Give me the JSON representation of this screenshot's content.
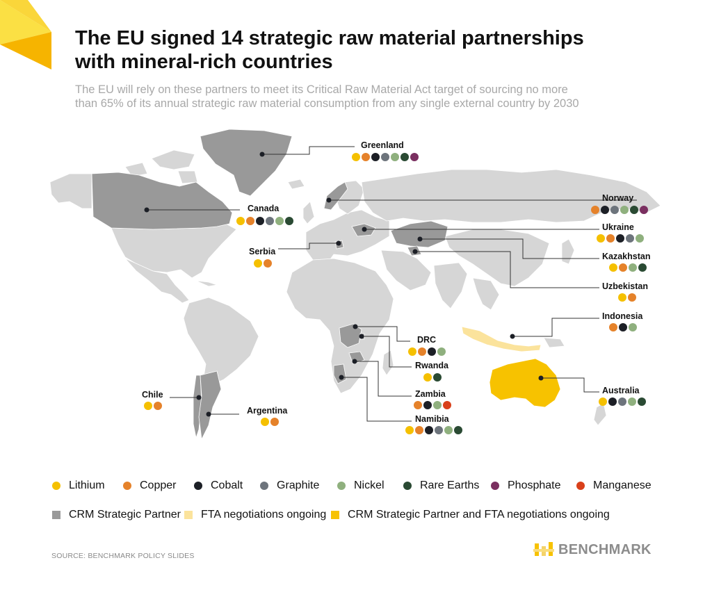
{
  "title_lines": [
    "The EU signed 14 strategic raw material partnerships",
    "with mineral-rich countries"
  ],
  "subtitle_lines": [
    "The EU will rely on these partners to meet its Critical Raw Material Act target of sourcing no more",
    "than 65% of its annual strategic raw material consumption from any single external country by 2030"
  ],
  "colors": {
    "lithium": "#f5c000",
    "copper": "#e5822a",
    "cobalt": "#1c1f26",
    "graphite": "#6d747c",
    "nickel": "#8fb07e",
    "rare_earths": "#2a4a33",
    "phosphate": "#7a2f60",
    "manganese": "#d9401a",
    "crm_partner": "#999999",
    "fta": "#fbe39c",
    "crm_and_fta": "#f7c200",
    "land": "#d6d6d6",
    "accent_yellow": "#f8c200"
  },
  "countries": [
    {
      "name": "Greenland",
      "minerals": [
        "lithium",
        "copper",
        "cobalt",
        "graphite",
        "nickel",
        "rare_earths",
        "phosphate"
      ]
    },
    {
      "name": "Canada",
      "minerals": [
        "lithium",
        "copper",
        "cobalt",
        "graphite",
        "nickel",
        "rare_earths"
      ]
    },
    {
      "name": "Serbia",
      "minerals": [
        "lithium",
        "copper"
      ]
    },
    {
      "name": "Norway",
      "minerals": [
        "copper",
        "cobalt",
        "graphite",
        "nickel",
        "rare_earths",
        "phosphate"
      ]
    },
    {
      "name": "Ukraine",
      "minerals": [
        "lithium",
        "copper",
        "cobalt",
        "graphite",
        "nickel"
      ]
    },
    {
      "name": "Kazakhstan",
      "minerals": [
        "lithium",
        "copper",
        "nickel",
        "rare_earths"
      ]
    },
    {
      "name": "Uzbekistan",
      "minerals": [
        "lithium",
        "copper"
      ]
    },
    {
      "name": "Indonesia",
      "minerals": [
        "copper",
        "cobalt",
        "nickel"
      ]
    },
    {
      "name": "DRC",
      "minerals": [
        "lithium",
        "copper",
        "cobalt",
        "nickel"
      ]
    },
    {
      "name": "Rwanda",
      "minerals": [
        "lithium",
        "rare_earths"
      ]
    },
    {
      "name": "Zambia",
      "minerals": [
        "copper",
        "cobalt",
        "nickel",
        "manganese"
      ]
    },
    {
      "name": "Namibia",
      "minerals": [
        "lithium",
        "copper",
        "cobalt",
        "graphite",
        "nickel",
        "rare_earths"
      ]
    },
    {
      "name": "Australia",
      "minerals": [
        "lithium",
        "cobalt",
        "graphite",
        "nickel",
        "rare_earths"
      ]
    },
    {
      "name": "Chile",
      "minerals": [
        "lithium",
        "copper"
      ]
    },
    {
      "name": "Argentina",
      "minerals": [
        "lithium",
        "copper"
      ]
    }
  ],
  "legend_minerals": [
    {
      "key": "lithium",
      "label": "Lithium"
    },
    {
      "key": "copper",
      "label": "Copper"
    },
    {
      "key": "cobalt",
      "label": "Cobalt"
    },
    {
      "key": "graphite",
      "label": "Graphite"
    },
    {
      "key": "nickel",
      "label": "Nickel"
    },
    {
      "key": "rare_earths",
      "label": "Rare Earths"
    },
    {
      "key": "phosphate",
      "label": "Phosphate"
    },
    {
      "key": "manganese",
      "label": "Manganese"
    }
  ],
  "legend_status": [
    {
      "key": "crm_partner",
      "label": "CRM Strategic Partner"
    },
    {
      "key": "fta",
      "label": "FTA negotiations ongoing"
    },
    {
      "key": "crm_and_fta",
      "label": "CRM Strategic Partner and FTA negotiations ongoing"
    }
  ],
  "source": "SOURCE: BENCHMARK POLICY SLIDES",
  "logo_text": "BENCHMARK"
}
